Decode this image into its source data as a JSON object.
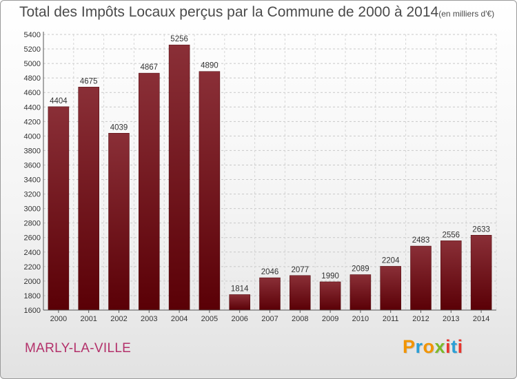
{
  "title": "Total des Impôts Locaux perçus par la Commune de 2000 à 2014",
  "title_unit": "(en milliers d'€)",
  "commune": "MARLY-LA-VILLE",
  "logo": {
    "letters": [
      "P",
      "r",
      "o",
      "x",
      "i",
      "t",
      "i"
    ],
    "colors": [
      "#f29400",
      "#2a9fd6",
      "#f29400",
      "#7cb928",
      "#e8362e",
      "#2a9fd6",
      "#e8362e"
    ]
  },
  "colors": {
    "bar_top": "#8a2f37",
    "bar_bottom": "#5a0006",
    "title": "#4a4a4a",
    "commune": "#b3306a"
  },
  "chart_data": {
    "type": "bar",
    "title": "Total des Impôts Locaux perçus par la Commune de 2000 à 2014",
    "categories": [
      "2000",
      "2001",
      "2002",
      "2003",
      "2004",
      "2005",
      "2006",
      "2007",
      "2008",
      "2009",
      "2010",
      "2011",
      "2012",
      "2013",
      "2014"
    ],
    "values": [
      4404,
      4675,
      4039,
      4867,
      5256,
      4890,
      1814,
      2046,
      2077,
      1990,
      2089,
      2204,
      2483,
      2556,
      2633
    ],
    "ylim": [
      1600,
      5400
    ],
    "ytick_step": 200,
    "grid": true
  }
}
